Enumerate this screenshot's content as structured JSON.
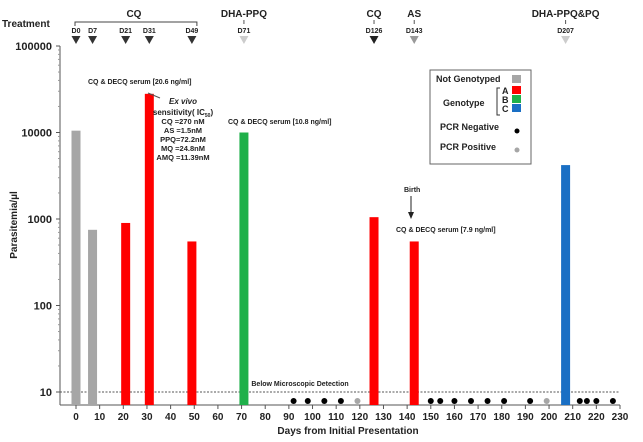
{
  "chart_data": {
    "type": "bar",
    "title": "",
    "xlabel": "Days from  Initial Presentation",
    "ylabel": "Parasitemia/µl",
    "yscale": "log",
    "ylim": [
      10,
      100000
    ],
    "xlim": [
      0,
      230
    ],
    "x_ticks": [
      0,
      10,
      20,
      30,
      40,
      50,
      60,
      70,
      80,
      90,
      100,
      110,
      120,
      130,
      140,
      150,
      160,
      170,
      180,
      190,
      200,
      210,
      220,
      230
    ],
    "y_ticks": [
      {
        "v": 10,
        "label": "10"
      },
      {
        "v": 100,
        "label": "100"
      },
      {
        "v": 1000,
        "label": "1000"
      },
      {
        "v": 10000,
        "label": "10000"
      },
      {
        "v": 100000,
        "label": "100000"
      }
    ],
    "bars": [
      {
        "day": 0,
        "value": 10500,
        "group": "Not Genotyped"
      },
      {
        "day": 7,
        "value": 750,
        "group": "Not Genotyped"
      },
      {
        "day": 21,
        "value": 900,
        "group": "A"
      },
      {
        "day": 31,
        "value": 28000,
        "group": "A"
      },
      {
        "day": 49,
        "value": 550,
        "group": "A"
      },
      {
        "day": 71,
        "value": 10000,
        "group": "B"
      },
      {
        "day": 126,
        "value": 1050,
        "group": "A"
      },
      {
        "day": 143,
        "value": 550,
        "group": "A"
      },
      {
        "day": 207,
        "value": 4200,
        "group": "C"
      }
    ],
    "pcr_points": [
      {
        "day": 92,
        "result": "negative"
      },
      {
        "day": 98,
        "result": "negative"
      },
      {
        "day": 105,
        "result": "negative"
      },
      {
        "day": 112,
        "result": "negative"
      },
      {
        "day": 119,
        "result": "positive"
      },
      {
        "day": 150,
        "result": "negative"
      },
      {
        "day": 154,
        "result": "negative"
      },
      {
        "day": 160,
        "result": "negative"
      },
      {
        "day": 167,
        "result": "negative"
      },
      {
        "day": 174,
        "result": "negative"
      },
      {
        "day": 181,
        "result": "negative"
      },
      {
        "day": 192,
        "result": "negative"
      },
      {
        "day": 199,
        "result": "positive"
      },
      {
        "day": 213,
        "result": "negative"
      },
      {
        "day": 216,
        "result": "negative"
      },
      {
        "day": 220,
        "result": "negative"
      },
      {
        "day": 227,
        "result": "negative"
      }
    ],
    "detection_line": {
      "value": 10,
      "label": "Below Microscopic Detection"
    },
    "colors": {
      "Not Genotyped": "#a6a6a6",
      "A": "#ff0000",
      "B": "#1fb04a",
      "C": "#1a6fc4",
      "negative": "#000000",
      "positive": "#a6a6a6"
    },
    "legend": {
      "placement": "top-right",
      "not_genotyped": "Not Genotyped",
      "genotype": "Genotype",
      "a": "A",
      "b": "B",
      "c": "C",
      "pcr_negative": "PCR Negative",
      "pcr_positive": "PCR Positive"
    },
    "treatment": {
      "label": "Treatment",
      "groups": [
        {
          "name": "CQ",
          "days": [
            "D0",
            "D7",
            "D21",
            "D31",
            "D49"
          ],
          "x": [
            0,
            7,
            21,
            31,
            49
          ],
          "color": "#333333",
          "bracket": true
        },
        {
          "name": "DHA-PPQ",
          "days": [
            "D71"
          ],
          "x": [
            71
          ],
          "color": "#cccccc",
          "bracket": false
        },
        {
          "name": "CQ",
          "days": [
            "D126"
          ],
          "x": [
            126
          ],
          "color": "#222222",
          "bracket": false
        },
        {
          "name": "AS",
          "days": [
            "D143"
          ],
          "x": [
            143
          ],
          "color": "#999999",
          "bracket": false
        },
        {
          "name": "DHA-PPQ&PQ",
          "days": [
            "D207"
          ],
          "x": [
            207
          ],
          "color": "#cccccc",
          "bracket": false
        }
      ]
    },
    "annotations": {
      "serum1": "CQ & DECQ serum [20.6 ng/ml]",
      "serum2": "CQ & DECQ serum [10.8 ng/ml]",
      "serum3": "CQ & DECQ serum [7.9 ng/ml]",
      "birth": "Birth",
      "exvivo_title": "Ex vivo",
      "exvivo_sub": "sensitivity( IC",
      "exvivo_sub_index": "50",
      "exvivo_close": ")",
      "exvivo_lines": [
        "CQ =270 nM",
        "AS =1.5nM",
        "PPQ=72.2nM",
        "MQ =24.8nM",
        "AMQ =11.39nM"
      ]
    }
  }
}
